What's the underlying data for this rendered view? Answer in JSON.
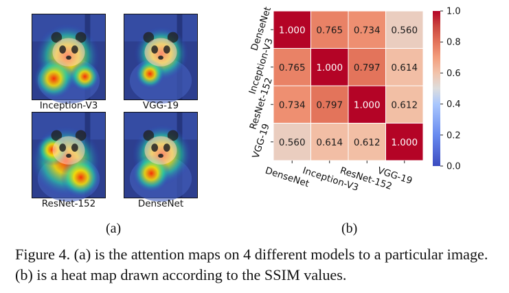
{
  "panel_a": {
    "thumbnails": [
      {
        "label": "Inception-V3"
      },
      {
        "label": "VGG-19"
      },
      {
        "label": "ResNet-152"
      },
      {
        "label": "DenseNet"
      }
    ],
    "sub_caption": "(a)"
  },
  "panel_b": {
    "sub_caption": "(b)"
  },
  "caption": "Figure 4. (a) is the attention maps on 4 different models to a particular image. (b) is a heat map drawn according to the SSIM values.",
  "chart_data": {
    "type": "heatmap",
    "metric": "SSIM",
    "row_labels": [
      "DenseNet",
      "Inception-V3",
      "ResNet-152",
      "VGG-19"
    ],
    "col_labels": [
      "DenseNet",
      "Inception-V3",
      "ResNet-152",
      "VGG-19"
    ],
    "values": [
      [
        1.0,
        0.765,
        0.734,
        0.56
      ],
      [
        0.765,
        1.0,
        0.797,
        0.614
      ],
      [
        0.734,
        0.797,
        1.0,
        0.612
      ],
      [
        0.56,
        0.614,
        0.612,
        1.0
      ]
    ],
    "value_format": "3 decimals",
    "colormap": "coolwarm",
    "colorbar": {
      "range": [
        0.0,
        1.0
      ],
      "ticks": [
        "0.0",
        "0.2",
        "0.4",
        "0.6",
        "0.8",
        "1.0"
      ],
      "placement": "right"
    },
    "annotations": true,
    "title": "",
    "xlabel": "",
    "ylabel": ""
  }
}
